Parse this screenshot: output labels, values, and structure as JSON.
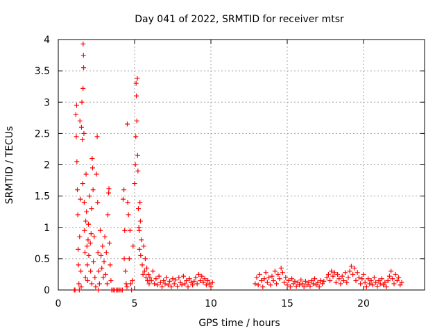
{
  "chart_data": {
    "type": "scatter",
    "title": "Day 041 of 2022, SRMTID for receiver mtsr",
    "xlabel": "GPS time / hours",
    "ylabel": "SRMTID / TECUs",
    "xlim": [
      0,
      24
    ],
    "ylim": [
      0,
      4
    ],
    "xticks": [
      0,
      5,
      10,
      15,
      20
    ],
    "xtick_labels": [
      "0",
      "5",
      "10",
      "15",
      "20"
    ],
    "yticks": [
      0,
      0.5,
      1,
      1.5,
      2,
      2.5,
      3,
      3.5,
      4
    ],
    "ytick_labels": [
      "0",
      "0.5",
      "1",
      "1.5",
      "2",
      "2.5",
      "3",
      "3.5",
      "4"
    ],
    "grid": true,
    "marker": "+",
    "marker_color": "#ff0000",
    "series": [
      {
        "name": "SRMTID",
        "points": [
          [
            1.05,
            0.0
          ],
          [
            1.1,
            0.0
          ],
          [
            1.15,
            2.8
          ],
          [
            1.18,
            2.45
          ],
          [
            1.2,
            2.95
          ],
          [
            1.22,
            2.05
          ],
          [
            1.25,
            1.6
          ],
          [
            1.28,
            1.2
          ],
          [
            1.3,
            0.65
          ],
          [
            1.32,
            0.4
          ],
          [
            1.35,
            0.1
          ],
          [
            1.38,
            0.0
          ],
          [
            1.4,
            0.85
          ],
          [
            1.42,
            2.7
          ],
          [
            1.45,
            1.45
          ],
          [
            1.48,
            0.3
          ],
          [
            1.5,
            0.05
          ],
          [
            1.52,
            2.6
          ],
          [
            1.55,
            3.0
          ],
          [
            1.58,
            2.4
          ],
          [
            1.6,
            1.7
          ],
          [
            1.62,
            3.22
          ],
          [
            1.63,
            3.93
          ],
          [
            1.65,
            3.75
          ],
          [
            1.66,
            3.55
          ],
          [
            1.68,
            2.5
          ],
          [
            1.7,
            1.4
          ],
          [
            1.72,
            0.95
          ],
          [
            1.75,
            0.6
          ],
          [
            1.78,
            0.2
          ],
          [
            1.8,
            1.1
          ],
          [
            1.82,
            1.85
          ],
          [
            1.85,
            1.25
          ],
          [
            1.88,
            0.7
          ],
          [
            1.9,
            0.4
          ],
          [
            1.92,
            0.15
          ],
          [
            1.95,
            0.8
          ],
          [
            1.98,
            1.05
          ],
          [
            2.0,
            0.55
          ],
          [
            2.05,
            1.5
          ],
          [
            2.1,
            0.75
          ],
          [
            2.12,
            0.3
          ],
          [
            2.15,
            0.9
          ],
          [
            2.18,
            1.3
          ],
          [
            2.2,
            0.1
          ],
          [
            2.22,
            2.1
          ],
          [
            2.25,
            1.95
          ],
          [
            2.28,
            1.6
          ],
          [
            2.3,
            0.45
          ],
          [
            2.35,
            0.85
          ],
          [
            2.4,
            0.2
          ],
          [
            2.45,
            0.05
          ],
          [
            2.5,
            1.85
          ],
          [
            2.55,
            2.45
          ],
          [
            2.58,
            1.4
          ],
          [
            2.6,
            0.6
          ],
          [
            2.62,
            0.0
          ],
          [
            2.65,
            0.3
          ],
          [
            2.7,
            0.1
          ],
          [
            2.75,
            0.95
          ],
          [
            2.8,
            0.55
          ],
          [
            2.85,
            0.35
          ],
          [
            2.9,
            0.7
          ],
          [
            2.95,
            0.2
          ],
          [
            3.0,
            0.45
          ],
          [
            3.05,
            0.85
          ],
          [
            3.1,
            0.25
          ],
          [
            3.15,
            0.6
          ],
          [
            3.2,
            0.1
          ],
          [
            3.25,
            1.2
          ],
          [
            3.3,
            1.55
          ],
          [
            3.32,
            1.62
          ],
          [
            3.35,
            0.75
          ],
          [
            3.4,
            0.4
          ],
          [
            3.45,
            0.15
          ],
          [
            3.5,
            0.0
          ],
          [
            3.6,
            0.0
          ],
          [
            3.7,
            0.0
          ],
          [
            3.8,
            0.0
          ],
          [
            3.9,
            0.0
          ],
          [
            4.0,
            0.0
          ],
          [
            4.1,
            0.0
          ],
          [
            4.2,
            0.0
          ],
          [
            4.25,
            1.45
          ],
          [
            4.3,
            1.6
          ],
          [
            4.32,
            0.5
          ],
          [
            4.35,
            0.95
          ],
          [
            4.4,
            0.3
          ],
          [
            4.45,
            0.1
          ],
          [
            4.5,
            0.05
          ],
          [
            4.52,
            2.65
          ],
          [
            4.55,
            1.4
          ],
          [
            4.6,
            1.2
          ],
          [
            4.65,
            0.5
          ],
          [
            4.7,
            0.95
          ],
          [
            4.75,
            0.1
          ],
          [
            4.8,
            0.0
          ],
          [
            4.85,
            0.15
          ],
          [
            4.9,
            0.7
          ],
          [
            5.0,
            1.7
          ],
          [
            5.05,
            2.0
          ],
          [
            5.08,
            2.45
          ],
          [
            5.1,
            3.3
          ],
          [
            5.12,
            3.1
          ],
          [
            5.15,
            2.7
          ],
          [
            5.18,
            3.38
          ],
          [
            5.2,
            2.15
          ],
          [
            5.22,
            1.9
          ],
          [
            5.25,
            1.3
          ],
          [
            5.28,
            1.0
          ],
          [
            5.3,
            0.95
          ],
          [
            5.32,
            0.65
          ],
          [
            5.35,
            1.4
          ],
          [
            5.38,
            1.1
          ],
          [
            5.4,
            0.55
          ],
          [
            5.45,
            0.8
          ],
          [
            5.5,
            0.4
          ],
          [
            5.55,
            0.25
          ],
          [
            5.6,
            0.7
          ],
          [
            5.65,
            0.3
          ],
          [
            5.7,
            0.5
          ],
          [
            5.75,
            0.2
          ],
          [
            5.8,
            0.35
          ],
          [
            5.85,
            0.15
          ],
          [
            5.9,
            0.25
          ],
          [
            5.95,
            0.1
          ],
          [
            6.0,
            0.2
          ],
          [
            6.1,
            0.15
          ],
          [
            6.2,
            0.3
          ],
          [
            6.3,
            0.1
          ],
          [
            6.4,
            0.18
          ],
          [
            6.5,
            0.08
          ],
          [
            6.6,
            0.22
          ],
          [
            6.7,
            0.12
          ],
          [
            6.8,
            0.05
          ],
          [
            6.9,
            0.15
          ],
          [
            7.0,
            0.1
          ],
          [
            7.1,
            0.2
          ],
          [
            7.2,
            0.08
          ],
          [
            7.3,
            0.14
          ],
          [
            7.4,
            0.05
          ],
          [
            7.5,
            0.18
          ],
          [
            7.6,
            0.1
          ],
          [
            7.7,
            0.16
          ],
          [
            7.8,
            0.06
          ],
          [
            7.9,
            0.2
          ],
          [
            8.0,
            0.12
          ],
          [
            8.1,
            0.08
          ],
          [
            8.2,
            0.22
          ],
          [
            8.3,
            0.1
          ],
          [
            8.4,
            0.15
          ],
          [
            8.5,
            0.05
          ],
          [
            8.6,
            0.18
          ],
          [
            8.7,
            0.12
          ],
          [
            8.8,
            0.08
          ],
          [
            8.9,
            0.14
          ],
          [
            9.0,
            0.2
          ],
          [
            9.1,
            0.1
          ],
          [
            9.2,
            0.25
          ],
          [
            9.3,
            0.15
          ],
          [
            9.4,
            0.22
          ],
          [
            9.5,
            0.12
          ],
          [
            9.6,
            0.18
          ],
          [
            9.7,
            0.08
          ],
          [
            9.8,
            0.15
          ],
          [
            9.9,
            0.1
          ],
          [
            10.0,
            0.05
          ],
          [
            10.1,
            0.12
          ],
          [
            12.9,
            0.1
          ],
          [
            13.0,
            0.2
          ],
          [
            13.1,
            0.08
          ],
          [
            13.2,
            0.25
          ],
          [
            13.3,
            0.15
          ],
          [
            13.4,
            0.05
          ],
          [
            13.5,
            0.18
          ],
          [
            13.6,
            0.28
          ],
          [
            13.7,
            0.12
          ],
          [
            13.8,
            0.2
          ],
          [
            13.9,
            0.08
          ],
          [
            14.0,
            0.22
          ],
          [
            14.1,
            0.15
          ],
          [
            14.2,
            0.3
          ],
          [
            14.3,
            0.1
          ],
          [
            14.4,
            0.25
          ],
          [
            14.5,
            0.18
          ],
          [
            14.6,
            0.35
          ],
          [
            14.7,
            0.28
          ],
          [
            14.8,
            0.12
          ],
          [
            14.9,
            0.2
          ],
          [
            15.0,
            0.08
          ],
          [
            15.1,
            0.15
          ],
          [
            15.2,
            0.05
          ],
          [
            15.3,
            0.18
          ],
          [
            15.4,
            0.1
          ],
          [
            15.5,
            0.14
          ],
          [
            15.6,
            0.06
          ],
          [
            15.7,
            0.12
          ],
          [
            15.8,
            0.08
          ],
          [
            15.9,
            0.16
          ],
          [
            16.0,
            0.1
          ],
          [
            16.1,
            0.05
          ],
          [
            16.2,
            0.14
          ],
          [
            16.3,
            0.08
          ],
          [
            16.4,
            0.12
          ],
          [
            16.5,
            0.06
          ],
          [
            16.6,
            0.15
          ],
          [
            16.7,
            0.1
          ],
          [
            16.8,
            0.18
          ],
          [
            16.9,
            0.08
          ],
          [
            17.0,
            0.12
          ],
          [
            17.1,
            0.05
          ],
          [
            17.2,
            0.15
          ],
          [
            17.3,
            0.1
          ],
          [
            17.4,
            0.14
          ],
          [
            17.6,
            0.2
          ],
          [
            17.7,
            0.25
          ],
          [
            17.8,
            0.15
          ],
          [
            17.9,
            0.3
          ],
          [
            18.0,
            0.22
          ],
          [
            18.1,
            0.28
          ],
          [
            18.2,
            0.12
          ],
          [
            18.3,
            0.25
          ],
          [
            18.4,
            0.18
          ],
          [
            18.5,
            0.1
          ],
          [
            18.6,
            0.22
          ],
          [
            18.7,
            0.15
          ],
          [
            18.8,
            0.28
          ],
          [
            18.9,
            0.12
          ],
          [
            19.0,
            0.2
          ],
          [
            19.1,
            0.3
          ],
          [
            19.2,
            0.38
          ],
          [
            19.3,
            0.25
          ],
          [
            19.4,
            0.35
          ],
          [
            19.5,
            0.15
          ],
          [
            19.6,
            0.28
          ],
          [
            19.7,
            0.2
          ],
          [
            19.8,
            0.1
          ],
          [
            19.9,
            0.18
          ],
          [
            20.0,
            0.25
          ],
          [
            20.1,
            0.12
          ],
          [
            20.2,
            0.05
          ],
          [
            20.3,
            0.18
          ],
          [
            20.4,
            0.1
          ],
          [
            20.5,
            0.15
          ],
          [
            20.6,
            0.08
          ],
          [
            20.7,
            0.2
          ],
          [
            20.8,
            0.12
          ],
          [
            20.9,
            0.06
          ],
          [
            21.0,
            0.15
          ],
          [
            21.1,
            0.1
          ],
          [
            21.2,
            0.18
          ],
          [
            21.3,
            0.08
          ],
          [
            21.4,
            0.12
          ],
          [
            21.5,
            0.05
          ],
          [
            21.6,
            0.15
          ],
          [
            21.7,
            0.22
          ],
          [
            21.8,
            0.3
          ],
          [
            21.9,
            0.18
          ],
          [
            22.0,
            0.1
          ],
          [
            22.1,
            0.25
          ],
          [
            22.2,
            0.15
          ],
          [
            22.3,
            0.2
          ],
          [
            22.4,
            0.08
          ],
          [
            22.5,
            0.12
          ]
        ]
      }
    ]
  }
}
